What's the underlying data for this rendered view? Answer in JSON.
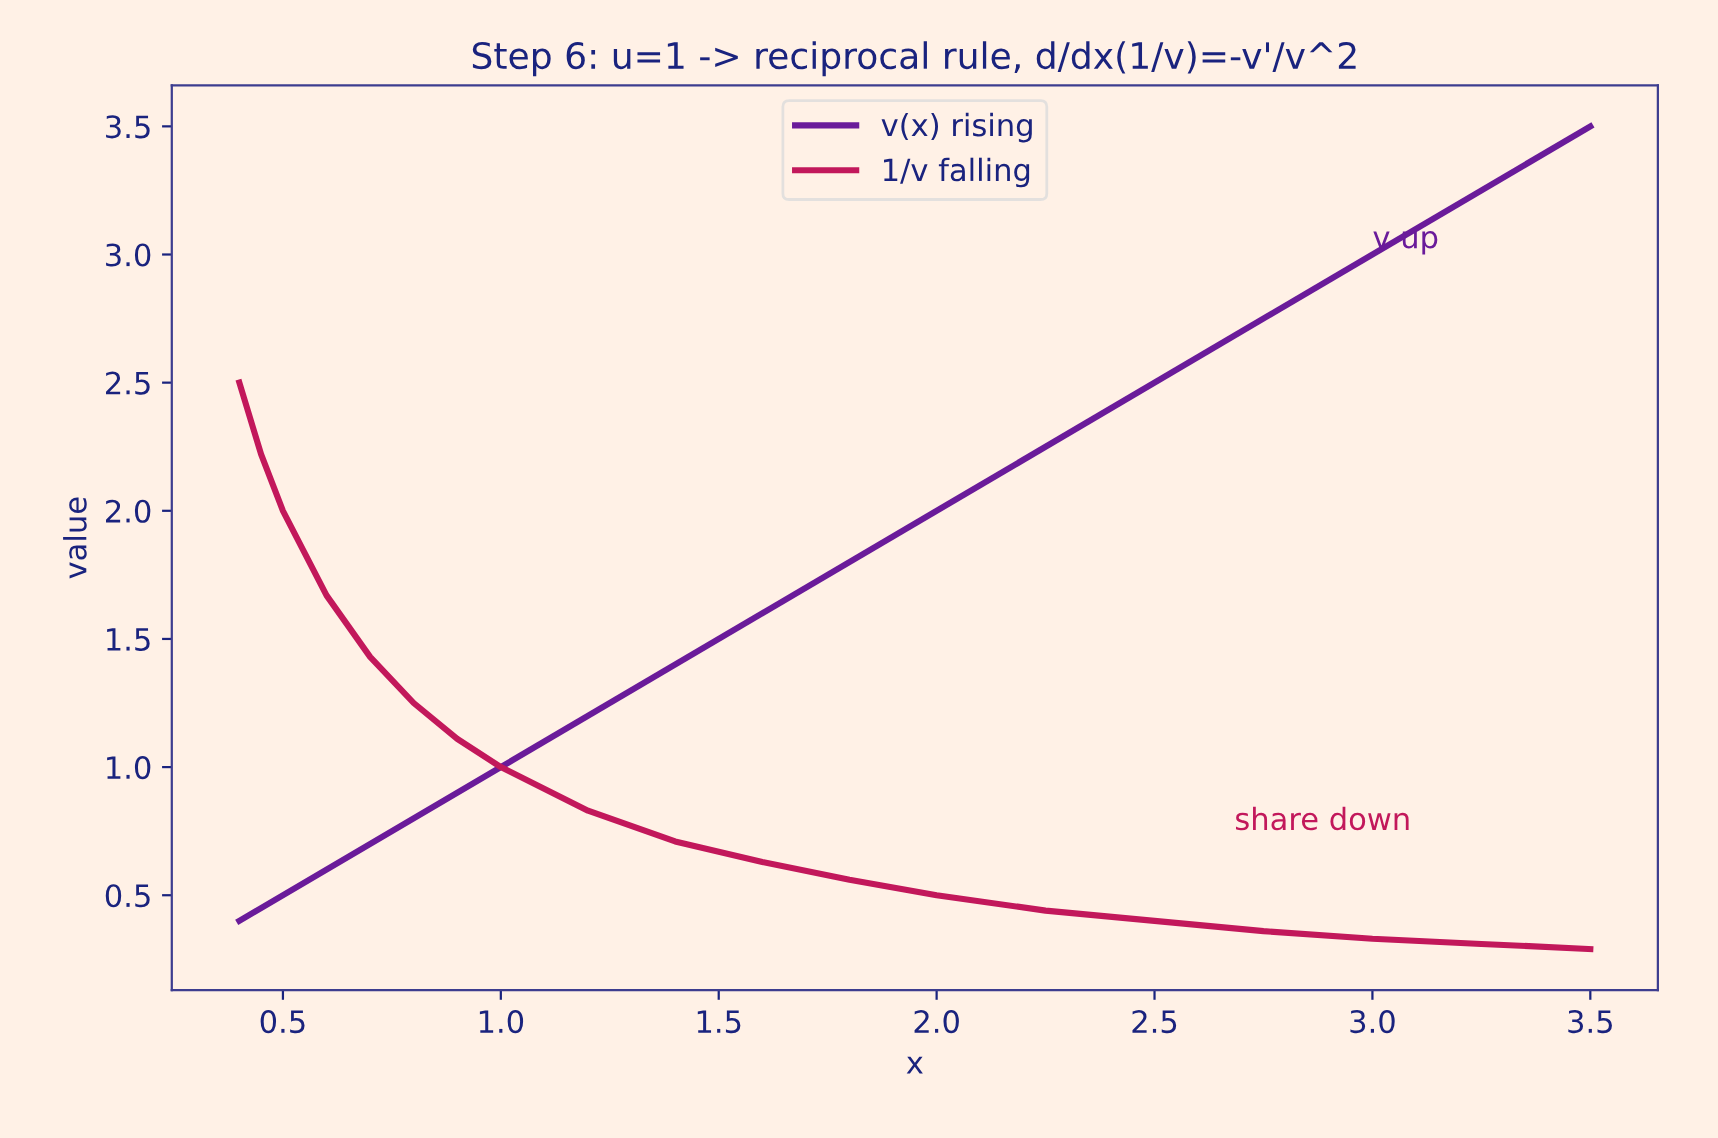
{
  "chart_data": {
    "type": "line",
    "title": "Step 6: u=1 -> reciprocal rule, d/dx(1/v)=-v'/v^2",
    "xlabel": "x",
    "ylabel": "value",
    "series": [
      {
        "name": "v(x) rising",
        "color": "#6a1b9a",
        "x": [
          0.4,
          3.5
        ],
        "values": [
          0.4,
          3.5
        ]
      },
      {
        "name": "1/v falling",
        "color": "#c2185b",
        "x": [
          0.4,
          0.45,
          0.5,
          0.6,
          0.7,
          0.8,
          0.9,
          1.0,
          1.2,
          1.4,
          1.6,
          1.8,
          2.0,
          2.25,
          2.5,
          2.75,
          3.0,
          3.25,
          3.5
        ],
        "values": [
          2.5,
          2.22,
          2.0,
          1.67,
          1.43,
          1.25,
          1.11,
          1.0,
          0.83,
          0.71,
          0.63,
          0.56,
          0.5,
          0.44,
          0.4,
          0.36,
          0.33,
          0.31,
          0.29
        ]
      }
    ],
    "annotations": [
      {
        "text": "v up",
        "x": 3.0,
        "y": 3.0
      },
      "share down"
    ],
    "xlim": [
      0.245,
      3.655
    ],
    "ylim": [
      0.13,
      3.66
    ],
    "xticks": [
      0.5,
      {
        "value": 1,
        "label": "1.0"
      },
      1.5,
      {
        "value": 2,
        "label": "2.0"
      },
      2.5,
      {
        "value": 3,
        "label": "3.0"
      },
      3.5
    ],
    "yticks": [
      0.5,
      {
        "value": 1,
        "label": "1.0"
      },
      1.5,
      {
        "value": 2,
        "label": "2.0"
      },
      2.5,
      {
        "value": 3,
        "label": "3.0"
      },
      3.5
    ],
    "grid": false,
    "legend": "top center",
    "marker": "none",
    "line_style": "solid"
  }
}
